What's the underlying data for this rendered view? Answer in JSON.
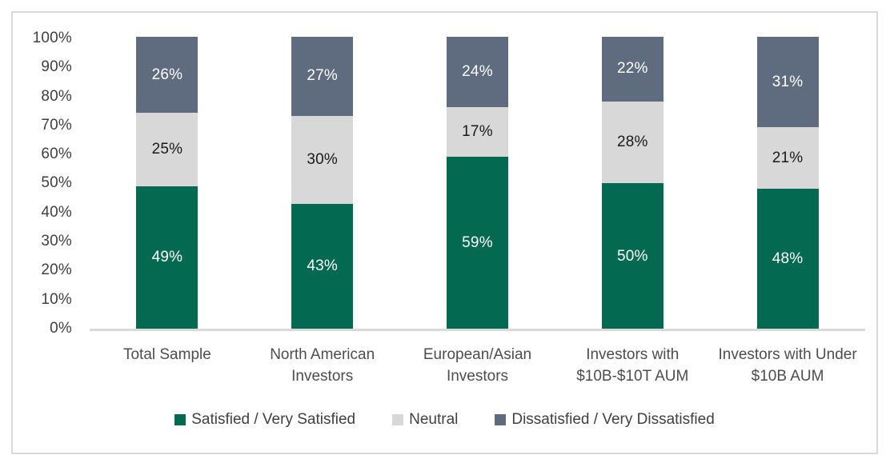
{
  "chart_data": {
    "type": "bar",
    "subtype": "100-percent-stacked-column",
    "title": "",
    "categories": [
      "Total Sample",
      "North American Investors",
      "European/Asian Investors",
      "Investors with $10B-$10T AUM",
      "Investors with Under $10B AUM"
    ],
    "series": [
      {
        "name": "Satisfied / Very Satisfied",
        "color": "#046951",
        "label_color": "#ffffff",
        "values": [
          49,
          43,
          59,
          50,
          48
        ]
      },
      {
        "name": "Neutral",
        "color": "#d8d8d8",
        "label_color": "#1a1a1a",
        "values": [
          25,
          30,
          17,
          28,
          21
        ]
      },
      {
        "name": "Dissatisfied / Very Dissatisfied",
        "color": "#5f6b7e",
        "label_color": "#ffffff",
        "values": [
          26,
          27,
          24,
          22,
          31
        ]
      }
    ],
    "value_suffix": "%",
    "y_axis": {
      "min": 0,
      "max": 100,
      "ticks": [
        "100%",
        "90%",
        "80%",
        "70%",
        "60%",
        "50%",
        "40%",
        "30%",
        "20%",
        "10%",
        "0%"
      ]
    },
    "grid": false,
    "legend_position": "bottom",
    "frame_color": "#d9d9d9",
    "axis_line_color": "#d9d9d9"
  }
}
